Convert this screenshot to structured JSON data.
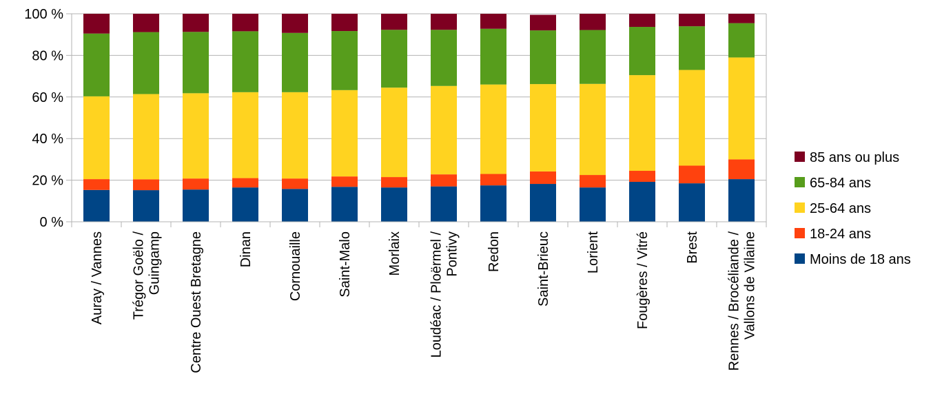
{
  "chart_data": {
    "type": "bar",
    "stacked": true,
    "title": "",
    "xlabel": "",
    "ylabel": "",
    "ylim": [
      0,
      100
    ],
    "yticks": [
      "0 %",
      "20 %",
      "40 %",
      "60 %",
      "80 %",
      "100 %"
    ],
    "grid": true,
    "legend_position": "right",
    "categories": [
      [
        "Auray / Vannes"
      ],
      [
        "Trégor Goëlo /",
        "Guingamp"
      ],
      [
        "Centre Ouest Bretagne"
      ],
      [
        "Dinan"
      ],
      [
        "Cornouaille"
      ],
      [
        "Saint-Malo"
      ],
      [
        "Morlaix"
      ],
      [
        "Loudéac / Ploërmel /",
        "Pontivy"
      ],
      [
        "Redon"
      ],
      [
        "Saint-Brieuc"
      ],
      [
        "Lorient"
      ],
      [
        "Fougères / Vitré"
      ],
      [
        "Brest"
      ],
      [
        "Rennes / Brocéliande /",
        "Vallons de Vilaine"
      ]
    ],
    "series": [
      {
        "name": "Moins de 18 ans",
        "color": "#004586",
        "values": [
          15.3,
          15.2,
          15.5,
          16.5,
          15.8,
          16.8,
          16.5,
          17.0,
          17.5,
          18.2,
          16.5,
          19.2,
          18.5,
          20.5
        ]
      },
      {
        "name": "18-24 ans",
        "color": "#ff420e",
        "values": [
          5.2,
          5.2,
          5.3,
          4.5,
          5.0,
          5.0,
          5.0,
          5.8,
          5.5,
          6.0,
          6.0,
          5.3,
          8.5,
          9.5
        ]
      },
      {
        "name": "25-64 ans",
        "color": "#ffd320",
        "values": [
          39.8,
          41.0,
          41.0,
          41.3,
          41.5,
          41.5,
          43.0,
          42.5,
          43.0,
          42.0,
          43.8,
          46.0,
          46.0,
          49.0
        ]
      },
      {
        "name": "65-84 ans",
        "color": "#579d1c",
        "values": [
          30.2,
          29.8,
          29.5,
          29.3,
          28.5,
          28.4,
          27.8,
          27.0,
          26.8,
          25.8,
          25.9,
          23.2,
          21.0,
          16.5
        ]
      },
      {
        "name": "85 ans ou plus",
        "color": "#7e0021",
        "values": [
          9.5,
          8.8,
          8.7,
          8.4,
          9.2,
          8.3,
          7.7,
          7.7,
          7.2,
          7.5,
          7.8,
          6.3,
          6.0,
          4.5
        ]
      }
    ]
  }
}
